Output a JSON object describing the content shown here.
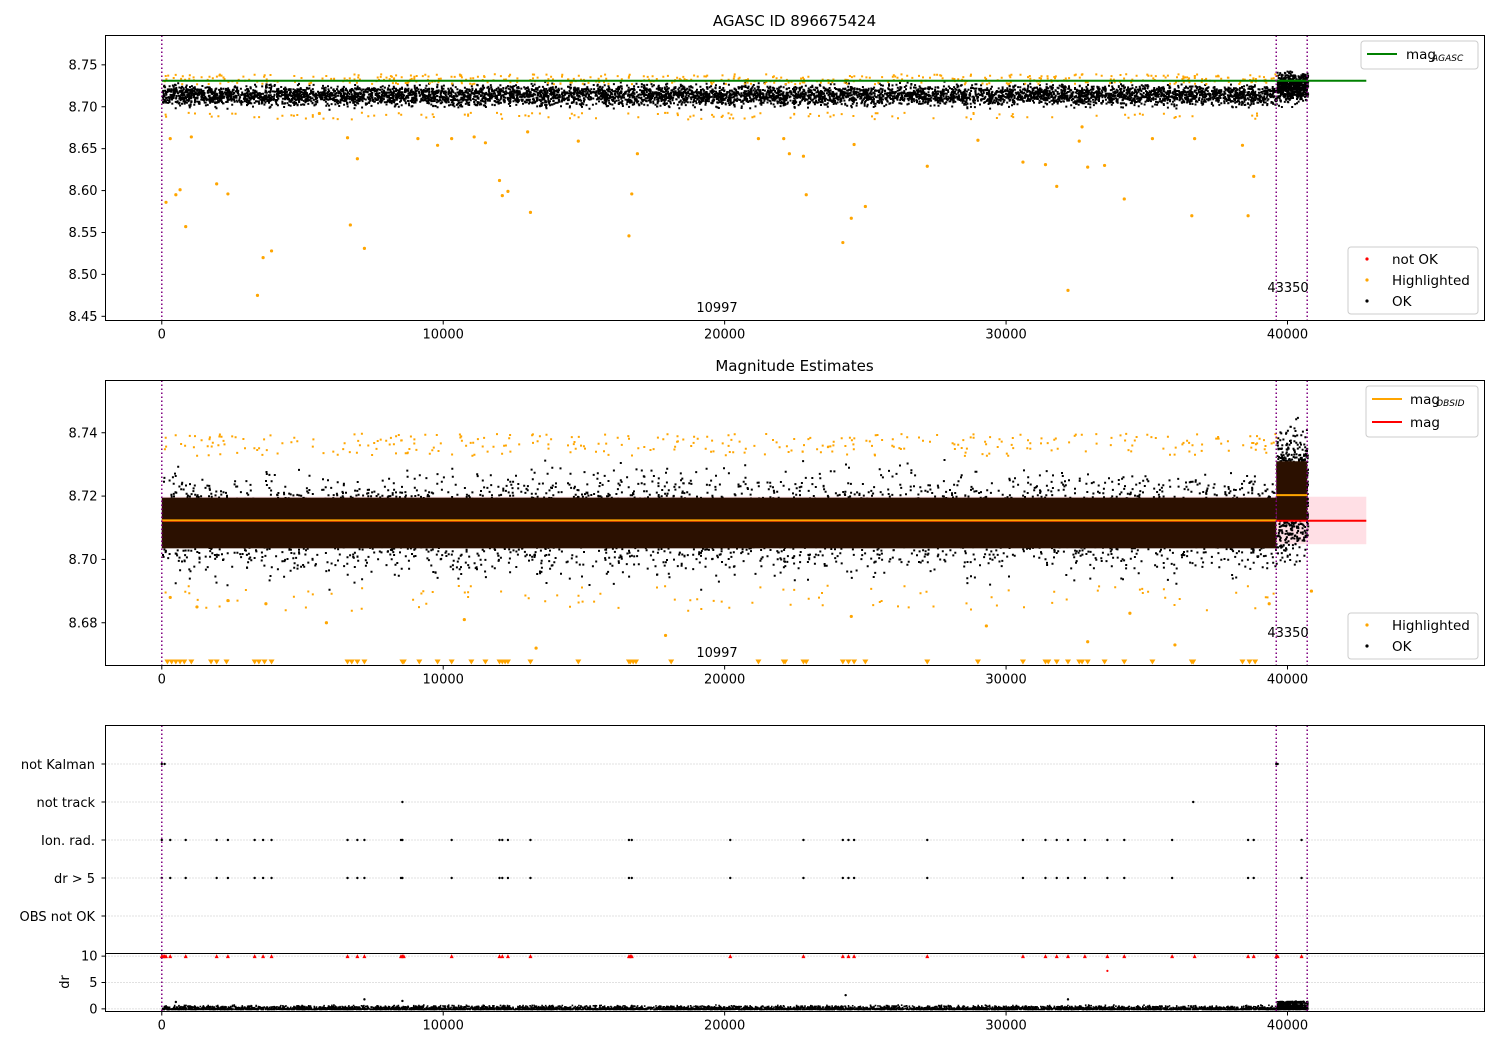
{
  "chart_data": [
    {
      "type": "scatter",
      "title": "AGASC ID 896675424",
      "xlim": [
        -2000,
        47000
      ],
      "ylim": [
        8.445,
        8.785
      ],
      "x_ticks": [
        0,
        10000,
        20000,
        30000,
        40000
      ],
      "y_ticks": [
        8.45,
        8.5,
        8.55,
        8.6,
        8.65,
        8.7,
        8.75
      ],
      "y_tick_labels": [
        "8.45",
        "8.50",
        "8.55",
        "8.60",
        "8.65",
        "8.70",
        "8.75"
      ],
      "obs_boundaries": [
        0,
        39600,
        40700
      ],
      "obs_labels": [
        {
          "x": 19900,
          "text": "10997"
        },
        {
          "x": 40200,
          "text": "43350"
        }
      ],
      "mag_agasc": {
        "name": "mag",
        "sub": "AGASC",
        "y": 8.731,
        "color": "#008000",
        "x_range": [
          0,
          42800
        ]
      },
      "ok_band": [
        {
          "x": [
            0,
            39600
          ],
          "y": [
            8.697,
            8.732
          ]
        },
        {
          "x": [
            39600,
            40700
          ],
          "y": [
            8.7,
            8.748
          ]
        }
      ],
      "legend_upper": "top-right",
      "legend_lower": "lower-right",
      "legend": [
        {
          "label": "not OK",
          "color": "#ff0000"
        },
        {
          "label": "Highlighted",
          "color": "#ffa500"
        },
        {
          "label": "OK",
          "color": "#000000"
        }
      ],
      "highlighted_outliers": [
        {
          "x": 150,
          "y": 8.586
        },
        {
          "x": 300,
          "y": 8.662
        },
        {
          "x": 500,
          "y": 8.595
        },
        {
          "x": 650,
          "y": 8.601
        },
        {
          "x": 850,
          "y": 8.557
        },
        {
          "x": 1050,
          "y": 8.664
        },
        {
          "x": 1950,
          "y": 8.608
        },
        {
          "x": 2350,
          "y": 8.596
        },
        {
          "x": 3400,
          "y": 8.475
        },
        {
          "x": 3600,
          "y": 8.52
        },
        {
          "x": 3900,
          "y": 8.528
        },
        {
          "x": 5600,
          "y": 8.692
        },
        {
          "x": 6600,
          "y": 8.663
        },
        {
          "x": 6700,
          "y": 8.559
        },
        {
          "x": 6950,
          "y": 8.638
        },
        {
          "x": 7200,
          "y": 8.531
        },
        {
          "x": 9100,
          "y": 8.662
        },
        {
          "x": 9800,
          "y": 8.654
        },
        {
          "x": 10300,
          "y": 8.662
        },
        {
          "x": 11100,
          "y": 8.664
        },
        {
          "x": 11500,
          "y": 8.657
        },
        {
          "x": 12000,
          "y": 8.612
        },
        {
          "x": 12100,
          "y": 8.594
        },
        {
          "x": 12300,
          "y": 8.599
        },
        {
          "x": 13000,
          "y": 8.67
        },
        {
          "x": 13100,
          "y": 8.574
        },
        {
          "x": 14800,
          "y": 8.659
        },
        {
          "x": 16600,
          "y": 8.546
        },
        {
          "x": 16700,
          "y": 8.596
        },
        {
          "x": 16900,
          "y": 8.644
        },
        {
          "x": 21200,
          "y": 8.662
        },
        {
          "x": 22100,
          "y": 8.662
        },
        {
          "x": 22300,
          "y": 8.644
        },
        {
          "x": 22800,
          "y": 8.641
        },
        {
          "x": 22900,
          "y": 8.595
        },
        {
          "x": 24200,
          "y": 8.538
        },
        {
          "x": 24500,
          "y": 8.567
        },
        {
          "x": 24600,
          "y": 8.655
        },
        {
          "x": 25000,
          "y": 8.581
        },
        {
          "x": 27200,
          "y": 8.629
        },
        {
          "x": 29000,
          "y": 8.66
        },
        {
          "x": 30600,
          "y": 8.634
        },
        {
          "x": 31400,
          "y": 8.631
        },
        {
          "x": 31800,
          "y": 8.605
        },
        {
          "x": 32200,
          "y": 8.481
        },
        {
          "x": 32600,
          "y": 8.659
        },
        {
          "x": 32700,
          "y": 8.676
        },
        {
          "x": 32900,
          "y": 8.628
        },
        {
          "x": 33500,
          "y": 8.63
        },
        {
          "x": 34200,
          "y": 8.59
        },
        {
          "x": 35200,
          "y": 8.662
        },
        {
          "x": 36600,
          "y": 8.57
        },
        {
          "x": 36700,
          "y": 8.662
        },
        {
          "x": 38400,
          "y": 8.654
        },
        {
          "x": 38600,
          "y": 8.57
        },
        {
          "x": 38800,
          "y": 8.617
        }
      ]
    },
    {
      "type": "scatter",
      "title": "Magnitude Estimates",
      "xlim": [
        -2000,
        47000
      ],
      "ylim": [
        8.6665,
        8.7565
      ],
      "x_ticks": [
        0,
        10000,
        20000,
        30000,
        40000
      ],
      "y_ticks": [
        8.68,
        8.7,
        8.72,
        8.74
      ],
      "y_tick_labels": [
        "8.68",
        "8.70",
        "8.72",
        "8.74"
      ],
      "obs_boundaries": [
        0,
        39600,
        40700
      ],
      "obs_labels": [
        {
          "x": 19900,
          "text": "10997"
        },
        {
          "x": 40200,
          "text": "43350"
        }
      ],
      "mag": {
        "name": "mag",
        "y": 8.7122,
        "band": [
          8.7048,
          8.7198
        ],
        "color": "#ff0000",
        "x_range": [
          0,
          42800
        ]
      },
      "mag_obsid": {
        "name": "mag",
        "sub": "OBSID",
        "color": "#ffa500",
        "segments": [
          {
            "x": [
              0,
              39600
            ],
            "y": 8.712
          },
          {
            "x": [
              39600,
              40700
            ],
            "y": 8.72
          }
        ]
      },
      "ok_band": [
        {
          "x": [
            0,
            39600
          ],
          "y": [
            8.69,
            8.733
          ]
        },
        {
          "x": [
            39600,
            40700
          ],
          "y": [
            8.694,
            8.748
          ]
        }
      ],
      "legend_upper": "top-right",
      "legend_lower": "lower-right",
      "legend": [
        {
          "label": "Highlighted",
          "color": "#ffa500"
        },
        {
          "label": "OK",
          "color": "#000000"
        }
      ],
      "below_range_x": [
        200,
        350,
        500,
        650,
        800,
        1050,
        1750,
        1950,
        2300,
        3300,
        3450,
        3650,
        3900,
        6600,
        6750,
        6950,
        7200,
        8550,
        8600,
        9150,
        9800,
        10300,
        11000,
        11500,
        12000,
        12100,
        12200,
        12300,
        13100,
        14800,
        16600,
        16650,
        16750,
        16850,
        18100,
        21200,
        22100,
        22150,
        22800,
        22900,
        24200,
        24400,
        24600,
        25000,
        27200,
        29000,
        30600,
        31400,
        31500,
        31800,
        32200,
        32600,
        32700,
        32900,
        33500,
        34200,
        35200,
        36600,
        36650,
        38400,
        38650,
        38850
      ],
      "highlighted_low": [
        {
          "x": 300,
          "y": 8.688
        },
        {
          "x": 1250,
          "y": 8.685
        },
        {
          "x": 2350,
          "y": 8.687
        },
        {
          "x": 3700,
          "y": 8.686
        },
        {
          "x": 5850,
          "y": 8.68
        },
        {
          "x": 10750,
          "y": 8.681
        },
        {
          "x": 13300,
          "y": 8.672
        },
        {
          "x": 17900,
          "y": 8.676
        },
        {
          "x": 24500,
          "y": 8.682
        },
        {
          "x": 29300,
          "y": 8.679
        },
        {
          "x": 32900,
          "y": 8.674
        },
        {
          "x": 34400,
          "y": 8.683
        },
        {
          "x": 36000,
          "y": 8.673
        },
        {
          "x": 39350,
          "y": 8.686
        },
        {
          "x": 40850,
          "y": 8.69
        }
      ]
    },
    {
      "type": "scatter",
      "xlim": [
        -2000,
        47000
      ],
      "categories": [
        "not Kalman",
        "not track",
        "Ion. rad.",
        "dr > 5",
        "OBS not OK"
      ],
      "obs_boundaries": [
        0,
        39600,
        40700
      ],
      "flags": {
        "not Kalman": [
          0,
          100,
          39600,
          39650
        ],
        "not track": [
          8550,
          36650
        ],
        "Ion. rad.": [
          0,
          300,
          850,
          1950,
          2350,
          3300,
          3600,
          3900,
          6600,
          6950,
          7200,
          8500,
          8550,
          10300,
          12000,
          12100,
          12300,
          13100,
          16600,
          16700,
          20200,
          22800,
          24200,
          24400,
          24600,
          27200,
          30600,
          31400,
          31800,
          32200,
          32800,
          33600,
          34200,
          35900,
          38600,
          38800,
          40500
        ],
        "dr > 5": [
          0,
          300,
          850,
          1950,
          2350,
          3300,
          3600,
          3900,
          6600,
          6950,
          7200,
          8500,
          8550,
          10300,
          12000,
          12100,
          12300,
          13100,
          16600,
          16700,
          20200,
          22800,
          24200,
          24400,
          24600,
          27200,
          30600,
          31400,
          31800,
          32200,
          32800,
          33600,
          34200,
          35900,
          38600,
          38800,
          40500
        ],
        "OBS not OK": []
      }
    },
    {
      "type": "scatter",
      "ylabel": "dr",
      "xlim": [
        -2000,
        47000
      ],
      "ylim": [
        -0.5,
        10.5
      ],
      "x_ticks": [
        0,
        10000,
        20000,
        30000,
        40000
      ],
      "y_ticks": [
        0,
        5,
        10
      ],
      "y_tick_labels": [
        "0",
        "5",
        "10"
      ],
      "obs_boundaries": [
        0,
        39600,
        40700
      ],
      "dr_capped_x": [
        0,
        50,
        100,
        150,
        300,
        850,
        1950,
        2350,
        3300,
        3600,
        3900,
        6600,
        6950,
        7200,
        8500,
        8550,
        8600,
        10300,
        12000,
        12100,
        12300,
        13100,
        16600,
        16650,
        16700,
        20200,
        22800,
        24200,
        24400,
        24600,
        27200,
        30600,
        31400,
        31800,
        32200,
        32800,
        33600,
        34200,
        35900,
        36700,
        38600,
        38800,
        39600,
        39650,
        40500
      ],
      "dr_outliers": [
        {
          "x": 33600,
          "y": 7.2
        },
        {
          "x": 24300,
          "y": 2.6
        },
        {
          "x": 7200,
          "y": 1.8
        },
        {
          "x": 32200,
          "y": 1.8
        },
        {
          "x": 8550,
          "y": 1.5
        },
        {
          "x": 40300,
          "y": 1.4
        },
        {
          "x": 500,
          "y": 1.3
        }
      ]
    }
  ]
}
